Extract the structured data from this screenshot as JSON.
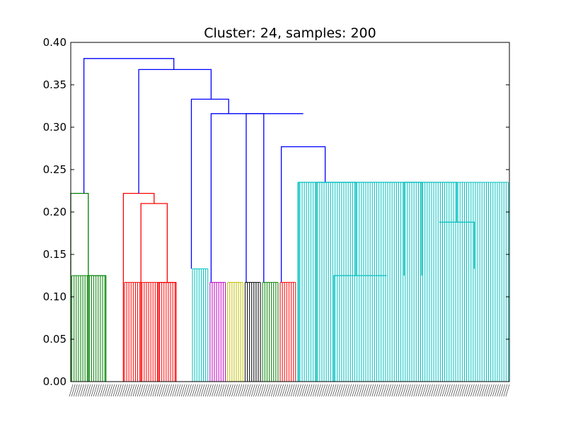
{
  "chart_data": {
    "type": "dendrogram",
    "title": "Cluster: 24, samples: 200",
    "xlabel": "",
    "ylabel": "",
    "ylim": [
      0,
      0.4
    ],
    "xlim": [
      0,
      200
    ],
    "y_ticks": [
      "0.00",
      "0.05",
      "0.10",
      "0.15",
      "0.20",
      "0.25",
      "0.30",
      "0.35",
      "0.40"
    ],
    "grid": false,
    "leaf_count": 200,
    "colors": {
      "blue": "#0000ff",
      "green": "#008000",
      "red": "#ff0000",
      "cyan": "#00bfbf",
      "magenta": "#bf00bf",
      "yellow": "#bfbf00",
      "black": "#000000"
    },
    "clusters": [
      {
        "color": "green",
        "start": 0,
        "count": 16,
        "height": 0.125
      },
      {
        "color": "red",
        "start": 24,
        "count": 24,
        "height": 0.117
      },
      {
        "color": "cyan",
        "start": 55,
        "count": 8,
        "height": 0.133
      },
      {
        "color": "magenta",
        "start": 63,
        "count": 8,
        "height": 0.117
      },
      {
        "color": "yellow",
        "start": 71,
        "count": 8,
        "height": 0.117
      },
      {
        "color": "black",
        "start": 79,
        "count": 8,
        "height": 0.117
      },
      {
        "color": "green",
        "start": 87,
        "count": 8,
        "height": 0.117
      },
      {
        "color": "red",
        "start": 95,
        "count": 8,
        "height": 0.117
      },
      {
        "color": "cyan",
        "start": 103,
        "count": 97,
        "height": 0.235
      }
    ],
    "links": [
      {
        "color": "green",
        "x": [
          0,
          0,
          8,
          8
        ],
        "y": [
          0,
          0.222,
          0.222,
          0.125
        ]
      },
      {
        "color": "green",
        "x": [
          8,
          8,
          16,
          16
        ],
        "y": [
          0,
          0.125,
          0.125,
          0
        ]
      },
      {
        "color": "red",
        "x": [
          24,
          24,
          38,
          38
        ],
        "y": [
          0,
          0.222,
          0.222,
          0.21
        ]
      },
      {
        "color": "red",
        "x": [
          32,
          32,
          44,
          44
        ],
        "y": [
          0,
          0.21,
          0.21,
          0.117
        ]
      },
      {
        "color": "red",
        "x": [
          40,
          40,
          48,
          48
        ],
        "y": [
          0,
          0.117,
          0.117,
          0
        ]
      },
      {
        "color": "blue",
        "x": [
          6,
          6,
          47,
          47
        ],
        "y": [
          0.222,
          0.381,
          0.381,
          0.368
        ]
      },
      {
        "color": "blue",
        "x": [
          31,
          31,
          64,
          64
        ],
        "y": [
          0.222,
          0.368,
          0.368,
          0.333
        ]
      },
      {
        "color": "blue",
        "x": [
          55,
          55,
          72,
          72
        ],
        "y": [
          0.133,
          0.333,
          0.333,
          0.316
        ]
      },
      {
        "color": "blue",
        "x": [
          64,
          64,
          106,
          106
        ],
        "y": [
          0.117,
          0.316,
          0.316,
          0.316
        ]
      },
      {
        "color": "blue",
        "x": [
          80,
          80,
          88,
          88
        ],
        "y": [
          0.117,
          0.316,
          0.316,
          0.117
        ]
      },
      {
        "color": "blue",
        "x": [
          96,
          96,
          116,
          116
        ],
        "y": [
          0.117,
          0.277,
          0.277,
          0.235
        ]
      },
      {
        "color": "cyan",
        "x": [
          104,
          104,
          176,
          176
        ],
        "y": [
          0,
          0.235,
          0.235,
          0.188
        ]
      },
      {
        "color": "cyan",
        "x": [
          112,
          112,
          130,
          130
        ],
        "y": [
          0,
          0.235,
          0.235,
          0.125
        ]
      },
      {
        "color": "cyan",
        "x": [
          120,
          120,
          144,
          144
        ],
        "y": [
          0,
          0.125,
          0.125,
          0.125
        ]
      },
      {
        "color": "cyan",
        "x": [
          152,
          152,
          160,
          160
        ],
        "y": [
          0.125,
          0.235,
          0.235,
          0.125
        ]
      },
      {
        "color": "cyan",
        "x": [
          168,
          168,
          184,
          184
        ],
        "y": [
          0.188,
          0.188,
          0.188,
          0.133
        ]
      }
    ]
  }
}
